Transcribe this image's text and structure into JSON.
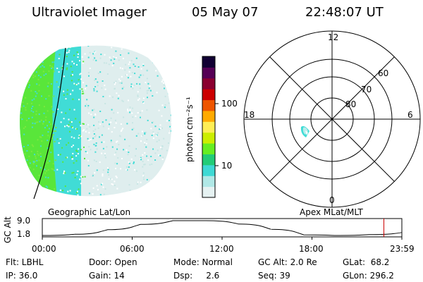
{
  "header": {
    "instrument": "Ultraviolet Imager",
    "date": "05 May 07",
    "time": "22:48:07 UT"
  },
  "colorbar": {
    "label": "photon cm⁻²s⁻¹",
    "ticks": [
      "100",
      "10"
    ],
    "scale": "log",
    "colors": [
      "#e6f2f2",
      "#b0e8e6",
      "#3ed9d4",
      "#22cc77",
      "#66ee22",
      "#ccee00",
      "#ffee55",
      "#ffaa00",
      "#ee5500",
      "#cc0000",
      "#8a0030",
      "#550055",
      "#110033"
    ]
  },
  "left_panel": {
    "caption": "Geographic Lat/Lon",
    "colors": {
      "green": "#59e63a",
      "cyan": "#40dcd6",
      "light": "#dfeeee"
    }
  },
  "polar_plot": {
    "caption": "Apex MLat/MLT",
    "mlt_labels": [
      "12",
      "18",
      "6",
      "0"
    ],
    "lat_labels": [
      "60",
      "70",
      "80"
    ]
  },
  "altitude_plot": {
    "axis_label": "GC Alt",
    "y_ticks": [
      "9.0",
      "1.8"
    ],
    "x_ticks": [
      "00:00",
      "06:00",
      "12:00",
      "18:00",
      "23:59"
    ],
    "marker_color": "#cc0000",
    "marker_time_hours": 22.8,
    "altitude_re": [
      1.8,
      2.4,
      4.6,
      7.2,
      9.0,
      9.0,
      7.4,
      4.8,
      2.1,
      1.8,
      2.2,
      3.2
    ]
  },
  "info_rows": [
    {
      "flt": "Flt: LBHL",
      "door": "Door: Open",
      "mode": "Mode: Normal",
      "gcalt": "GC Alt: 2.0 Re",
      "glat": "GLat:  68.2"
    },
    {
      "ip": "IP: 36.0",
      "gain": "Gain: 14",
      "dsp": "Dsp:     2.6",
      "seq": "Seq: 39",
      "glon": "GLon: 296.2"
    }
  ]
}
